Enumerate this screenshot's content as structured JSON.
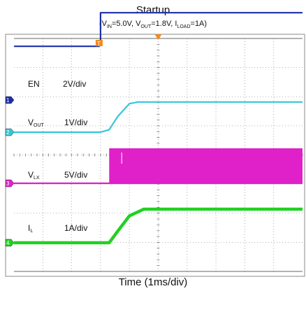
{
  "chart_data": {
    "type": "line",
    "title": "Startup",
    "subtitle": {
      "vin_base": "V",
      "vin_sub": "IN",
      "vin_val": "=5.0V, ",
      "vout_base": "V",
      "vout_sub": "OUT",
      "vout_val": "=1.8V, ",
      "iload_base": "I",
      "iload_sub": "LOAD",
      "iload_val": "=1A)",
      "open": "("
    },
    "xlabel": "Time (1ms/div)",
    "x_unit": "div",
    "xlim": [
      0,
      10
    ],
    "divisions": {
      "x": 10,
      "y": 8
    },
    "grid": true,
    "trigger_marker": "T",
    "series": [
      {
        "id": "EN",
        "label_base": "EN",
        "label_sub": "",
        "scale": "2V/div",
        "channel": "1",
        "color": "#1c2fa6",
        "x": [
          0,
          2.95,
          2.95,
          3.0,
          3.0,
          10
        ],
        "y": [
          2.4,
          2.4,
          2.55,
          2.55,
          3.9,
          3.9
        ]
      },
      {
        "id": "VOUT",
        "label_base": "V",
        "label_sub": "OUT",
        "scale": "1V/div",
        "channel": "2",
        "color": "#34c6d8",
        "x": [
          0,
          3.0,
          3.3,
          3.6,
          4.0,
          4.3,
          10
        ],
        "y": [
          0,
          0,
          0.15,
          0.95,
          1.7,
          1.8,
          1.8
        ]
      },
      {
        "id": "VLX",
        "label_base": "V",
        "label_sub": "LX",
        "scale": "5V/div",
        "channel": "3",
        "color": "#e020c8",
        "x": [
          0,
          3.3,
          10
        ],
        "y": [
          0,
          0,
          0
        ],
        "switching_band": {
          "x_start": 3.3,
          "x_end": 10,
          "y_low": 0,
          "y_high": 5
        }
      },
      {
        "id": "IL",
        "label_base": "I",
        "label_sub": "L",
        "scale": "1A/div",
        "channel": "4",
        "color": "#22d022",
        "x": [
          0,
          3.3,
          3.6,
          4.0,
          4.5,
          10
        ],
        "y": [
          0,
          0,
          0.35,
          0.8,
          1.0,
          1.0
        ]
      }
    ]
  }
}
